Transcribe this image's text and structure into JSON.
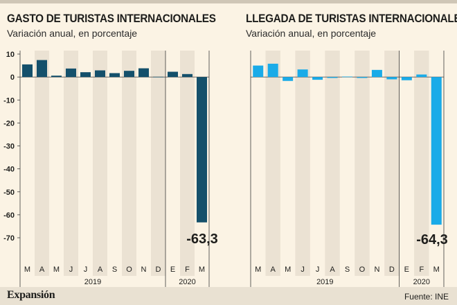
{
  "footer": {
    "brand": "Expansión",
    "source": "Fuente: INE"
  },
  "colors": {
    "background": "#fbf3e4",
    "stripe": "#ebe2d3",
    "axis_line": "#3a3a3a",
    "left_series": "#14506b",
    "right_series": "#1aabe8",
    "text": "#1d1d1b"
  },
  "chart_data": [
    {
      "type": "bar",
      "title": "GASTO DE TURISTAS INTERNACIONALES",
      "subtitle": "Variación anual, en porcentaje",
      "categories": [
        "M",
        "A",
        "M",
        "J",
        "J",
        "A",
        "S",
        "O",
        "N",
        "D",
        "E",
        "F",
        "M"
      ],
      "years": [
        {
          "label": "2019",
          "count": 10
        },
        {
          "label": "2020",
          "count": 3
        }
      ],
      "values": [
        5.5,
        7.4,
        0.6,
        3.7,
        2.1,
        2.9,
        1.7,
        2.7,
        3.8,
        0.1,
        2.3,
        1.3,
        -63.3
      ],
      "highlight_label": "-63,3",
      "ylim": [
        -70,
        10
      ],
      "yticks": [
        10,
        0,
        -10,
        -20,
        -30,
        -40,
        -50,
        -60,
        -70
      ],
      "ylabel": "",
      "xlabel": "",
      "grid": false,
      "color": "#14506b"
    },
    {
      "type": "bar",
      "title": "LLEGADA DE TURISTAS INTERNACIONALES",
      "subtitle": "Variación anual, en porcentaje",
      "categories": [
        "M",
        "A",
        "M",
        "J",
        "J",
        "A",
        "S",
        "O",
        "N",
        "D",
        "E",
        "F",
        "M"
      ],
      "years": [
        {
          "label": "2019",
          "count": 10
        },
        {
          "label": "2020",
          "count": 3
        }
      ],
      "values": [
        5.0,
        5.8,
        -1.7,
        3.3,
        -1.2,
        -0.4,
        0.2,
        -0.4,
        3.1,
        -1.0,
        -1.4,
        1.1,
        -64.3
      ],
      "highlight_label": "-64,3",
      "ylim": [
        -70,
        10
      ],
      "yticks": [
        10,
        0,
        -10,
        -20,
        -30,
        -40,
        -50,
        -60,
        -70
      ],
      "ylabel": "",
      "xlabel": "",
      "grid": false,
      "color": "#1aabe8"
    }
  ]
}
